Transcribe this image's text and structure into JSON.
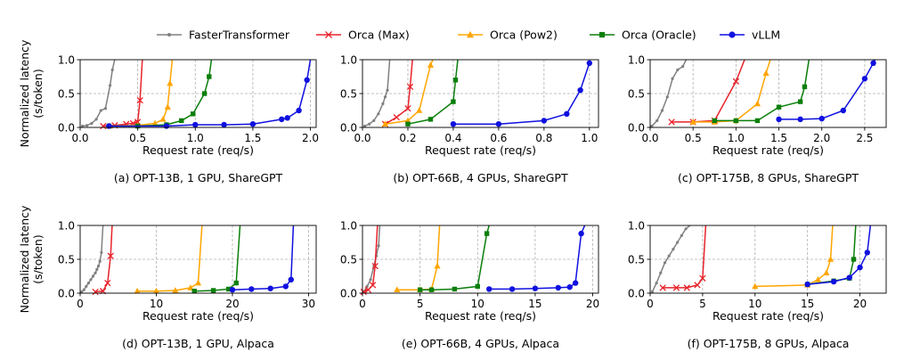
{
  "legend": [
    {
      "name": "FasterTransformer",
      "color": "#808080",
      "marker": "dot"
    },
    {
      "name": "Orca (Max)",
      "color": "#e8222a",
      "marker": "x"
    },
    {
      "name": "Orca (Pow2)",
      "color": "#ffa500",
      "marker": "triangle"
    },
    {
      "name": "Orca (Oracle)",
      "color": "#0b7f0b",
      "marker": "square"
    },
    {
      "name": "vLLM",
      "color": "#1010e0",
      "marker": "circle"
    }
  ],
  "y_axis_label": [
    "Normalized latency",
    "(s/token)"
  ],
  "x_axis_label": "Request rate (req/s)",
  "chart_data": [
    {
      "type": "line",
      "caption": "(a) OPT-13B, 1 GPU, ShareGPT",
      "xlabel": "Request rate (req/s)",
      "ylabel": "Normalized latency (s/token)",
      "xlim": [
        0,
        2.05
      ],
      "ylim": [
        0,
        1.0
      ],
      "xticks": [
        0.0,
        0.5,
        1.0,
        1.5,
        2.0
      ],
      "xtick_labels": [
        "0.0",
        "0.5",
        "1.0",
        "1.5",
        "2.0"
      ],
      "yticks": [
        0.0,
        0.5,
        1.0
      ],
      "ytick_labels": [
        "0.0",
        "0.5",
        "1.0"
      ],
      "series": [
        {
          "name": "FasterTransformer",
          "x": [
            0.02,
            0.06,
            0.1,
            0.14,
            0.18,
            0.22,
            0.26,
            0.28,
            0.3
          ],
          "y": [
            0.02,
            0.03,
            0.06,
            0.12,
            0.25,
            0.28,
            0.62,
            0.85,
            1.0
          ]
        },
        {
          "name": "Orca (Max)",
          "x": [
            0.2,
            0.3,
            0.4,
            0.46,
            0.5,
            0.52,
            0.54
          ],
          "y": [
            0.02,
            0.03,
            0.05,
            0.06,
            0.08,
            0.4,
            1.0
          ]
        },
        {
          "name": "Orca (Pow2)",
          "x": [
            0.25,
            0.5,
            0.65,
            0.72,
            0.76,
            0.78,
            0.8
          ],
          "y": [
            0.02,
            0.03,
            0.06,
            0.12,
            0.3,
            0.65,
            1.0
          ]
        },
        {
          "name": "Orca (Oracle)",
          "x": [
            0.25,
            0.5,
            0.75,
            0.88,
            0.98,
            1.08,
            1.12,
            1.14
          ],
          "y": [
            0.02,
            0.02,
            0.04,
            0.1,
            0.2,
            0.5,
            0.75,
            1.0
          ]
        },
        {
          "name": "vLLM",
          "x": [
            0.25,
            0.75,
            1.0,
            1.25,
            1.5,
            1.75,
            1.8,
            1.9,
            1.97,
            2.0
          ],
          "y": [
            0.02,
            0.02,
            0.04,
            0.04,
            0.05,
            0.12,
            0.14,
            0.25,
            0.7,
            1.0
          ]
        }
      ]
    },
    {
      "type": "line",
      "caption": "(b) OPT-66B, 4 GPUs, ShareGPT",
      "xlabel": "Request rate (req/s)",
      "ylabel": "Normalized latency (s/token)",
      "xlim": [
        0,
        1.04
      ],
      "ylim": [
        0,
        1.0
      ],
      "xticks": [
        0.0,
        0.2,
        0.4,
        0.6,
        0.8,
        1.0
      ],
      "xtick_labels": [
        "0.0",
        "0.2",
        "0.4",
        "0.6",
        "0.8",
        "1.0"
      ],
      "yticks": [
        0.0,
        0.5,
        1.0
      ],
      "ytick_labels": [
        "0.0",
        "0.5",
        "1.0"
      ],
      "series": [
        {
          "name": "FasterTransformer",
          "x": [
            0.01,
            0.03,
            0.05,
            0.07,
            0.09,
            0.1,
            0.11,
            0.12
          ],
          "y": [
            0.02,
            0.05,
            0.1,
            0.2,
            0.35,
            0.45,
            0.55,
            1.0
          ]
        },
        {
          "name": "Orca (Max)",
          "x": [
            0.1,
            0.15,
            0.2,
            0.21,
            0.22
          ],
          "y": [
            0.05,
            0.15,
            0.28,
            0.6,
            1.0
          ]
        },
        {
          "name": "Orca (Pow2)",
          "x": [
            0.1,
            0.2,
            0.25,
            0.3,
            0.31
          ],
          "y": [
            0.05,
            0.1,
            0.25,
            0.92,
            1.0
          ]
        },
        {
          "name": "Orca (Oracle)",
          "x": [
            0.2,
            0.3,
            0.4,
            0.41,
            0.42
          ],
          "y": [
            0.05,
            0.12,
            0.38,
            0.7,
            1.0
          ]
        },
        {
          "name": "vLLM",
          "x": [
            0.4,
            0.6,
            0.8,
            0.9,
            0.96,
            1.0
          ],
          "y": [
            0.05,
            0.05,
            0.1,
            0.2,
            0.55,
            0.95
          ]
        }
      ]
    },
    {
      "type": "line",
      "caption": "(c) OPT-175B, 8 GPUs, ShareGPT",
      "xlabel": "Request rate (req/s)",
      "ylabel": "Normalized latency (s/token)",
      "xlim": [
        0,
        2.75
      ],
      "ylim": [
        0,
        1.0
      ],
      "xticks": [
        0.0,
        0.5,
        1.0,
        1.5,
        2.0,
        2.5
      ],
      "xtick_labels": [
        "0.0",
        "0.5",
        "1.0",
        "1.5",
        "2.0",
        "2.5"
      ],
      "yticks": [
        0.0,
        0.5,
        1.0
      ],
      "ytick_labels": [
        "0.0",
        "0.5",
        "1.0"
      ],
      "series": [
        {
          "name": "FasterTransformer",
          "x": [
            0.02,
            0.08,
            0.14,
            0.2,
            0.26,
            0.32,
            0.38,
            0.42
          ],
          "y": [
            0.02,
            0.1,
            0.25,
            0.45,
            0.72,
            0.85,
            0.9,
            1.0
          ]
        },
        {
          "name": "Orca (Max)",
          "x": [
            0.25,
            0.5,
            0.75,
            1.0,
            1.1
          ],
          "y": [
            0.08,
            0.08,
            0.1,
            0.68,
            1.0
          ]
        },
        {
          "name": "Orca (Pow2)",
          "x": [
            0.5,
            0.75,
            1.0,
            1.25,
            1.35,
            1.4
          ],
          "y": [
            0.08,
            0.08,
            0.1,
            0.35,
            0.8,
            1.0
          ]
        },
        {
          "name": "Orca (Oracle)",
          "x": [
            0.75,
            1.0,
            1.25,
            1.5,
            1.75,
            1.8,
            1.85
          ],
          "y": [
            0.1,
            0.1,
            0.1,
            0.3,
            0.38,
            0.6,
            1.0
          ]
        },
        {
          "name": "vLLM",
          "x": [
            1.5,
            1.75,
            2.0,
            2.25,
            2.5,
            2.6,
            2.62
          ],
          "y": [
            0.12,
            0.12,
            0.13,
            0.25,
            0.72,
            0.95,
            1.0
          ]
        }
      ]
    },
    {
      "type": "line",
      "caption": "(d) OPT-13B, 1 GPU, Alpaca",
      "xlabel": "Request rate (req/s)",
      "ylabel": "Normalized latency (s/token)",
      "xlim": [
        0,
        31.0
      ],
      "ylim": [
        0,
        1.0
      ],
      "xticks": [
        0,
        10,
        20,
        30
      ],
      "xtick_labels": [
        "0",
        "10",
        "20",
        "30"
      ],
      "yticks": [
        0.0,
        0.5,
        1.0
      ],
      "ytick_labels": [
        "0.0",
        "0.5",
        "1.0"
      ],
      "series": [
        {
          "name": "FasterTransformer",
          "x": [
            0.2,
            0.5,
            0.8,
            1.1,
            1.4,
            1.7,
            2.0,
            2.2,
            2.4,
            2.6,
            2.8,
            3.0
          ],
          "y": [
            0.02,
            0.05,
            0.1,
            0.15,
            0.2,
            0.25,
            0.3,
            0.35,
            0.4,
            0.47,
            0.6,
            1.0
          ]
        },
        {
          "name": "Orca (Max)",
          "x": [
            2.0,
            3.0,
            3.6,
            4.0,
            4.2
          ],
          "y": [
            0.02,
            0.03,
            0.15,
            0.55,
            1.0
          ]
        },
        {
          "name": "Orca (Pow2)",
          "x": [
            7.5,
            10.0,
            12.5,
            14.5,
            15.5,
            16.0
          ],
          "y": [
            0.03,
            0.03,
            0.04,
            0.08,
            0.15,
            1.0
          ]
        },
        {
          "name": "Orca (Oracle)",
          "x": [
            15.0,
            17.5,
            19.5,
            20.5,
            21.0
          ],
          "y": [
            0.03,
            0.04,
            0.06,
            0.15,
            1.0
          ]
        },
        {
          "name": "vLLM",
          "x": [
            20.0,
            22.5,
            25.0,
            27.0,
            27.7,
            28.0
          ],
          "y": [
            0.05,
            0.06,
            0.07,
            0.1,
            0.2,
            1.0
          ]
        }
      ]
    },
    {
      "type": "line",
      "caption": "(e) OPT-66B, 4 GPUs, Alpaca",
      "xlabel": "Request rate (req/s)",
      "ylabel": "Normalized latency (s/token)",
      "xlim": [
        0,
        20.5
      ],
      "ylim": [
        0,
        1.0
      ],
      "xticks": [
        0,
        5,
        10,
        15,
        20
      ],
      "xtick_labels": [
        "0",
        "5",
        "10",
        "15",
        "20"
      ],
      "yticks": [
        0.0,
        0.5,
        1.0
      ],
      "ytick_labels": [
        "0.0",
        "0.5",
        "1.0"
      ],
      "series": [
        {
          "name": "FasterTransformer",
          "x": [
            0.1,
            0.4,
            0.7,
            1.0,
            1.2,
            1.4,
            1.5
          ],
          "y": [
            0.02,
            0.1,
            0.2,
            0.4,
            0.55,
            0.7,
            1.0
          ]
        },
        {
          "name": "Orca (Max)",
          "x": [
            0.1,
            0.5,
            0.9,
            1.1,
            1.3
          ],
          "y": [
            0.02,
            0.05,
            0.12,
            0.4,
            1.0
          ]
        },
        {
          "name": "Orca (Pow2)",
          "x": [
            3.0,
            5.0,
            6.0,
            6.5,
            6.7
          ],
          "y": [
            0.05,
            0.05,
            0.06,
            0.4,
            1.0
          ]
        },
        {
          "name": "Orca (Oracle)",
          "x": [
            5.0,
            6.0,
            8.0,
            10.0,
            10.8,
            11.0
          ],
          "y": [
            0.05,
            0.05,
            0.06,
            0.1,
            0.88,
            1.0
          ]
        },
        {
          "name": "vLLM",
          "x": [
            11.0,
            13.0,
            15.0,
            17.0,
            18.0,
            18.5,
            19.0,
            19.3
          ],
          "y": [
            0.06,
            0.06,
            0.07,
            0.08,
            0.09,
            0.15,
            0.88,
            1.0
          ]
        }
      ]
    },
    {
      "type": "line",
      "caption": "(f) OPT-175B, 8 GPUs, Alpaca",
      "xlabel": "Request rate (req/s)",
      "ylabel": "Normalized latency (s/token)",
      "xlim": [
        0,
        22.5
      ],
      "ylim": [
        0,
        1.0
      ],
      "xticks": [
        0,
        5,
        10,
        15,
        20
      ],
      "xtick_labels": [
        "0",
        "5",
        "10",
        "15",
        "20"
      ],
      "yticks": [
        0.0,
        0.5,
        1.0
      ],
      "ytick_labels": [
        "0.0",
        "0.5",
        "1.0"
      ],
      "series": [
        {
          "name": "FasterTransformer",
          "x": [
            0.2,
            0.6,
            1.0,
            1.4,
            1.8,
            2.2,
            2.6,
            3.0,
            3.4,
            3.8
          ],
          "y": [
            0.02,
            0.15,
            0.3,
            0.45,
            0.55,
            0.65,
            0.75,
            0.85,
            0.95,
            1.0
          ]
        },
        {
          "name": "Orca (Max)",
          "x": [
            1.2,
            2.5,
            3.5,
            4.5,
            5.0,
            5.3
          ],
          "y": [
            0.08,
            0.08,
            0.08,
            0.12,
            0.22,
            1.0
          ]
        },
        {
          "name": "Orca (Pow2)",
          "x": [
            10.0,
            15.0,
            16.0,
            16.8,
            17.2,
            17.4
          ],
          "y": [
            0.1,
            0.12,
            0.2,
            0.3,
            0.5,
            1.0
          ]
        },
        {
          "name": "Orca (Oracle)",
          "x": [
            15.0,
            17.5,
            19.0,
            19.4,
            19.6
          ],
          "y": [
            0.13,
            0.18,
            0.22,
            0.5,
            1.0
          ]
        },
        {
          "name": "vLLM",
          "x": [
            15.0,
            17.5,
            19.0,
            20.0,
            20.7,
            21.0
          ],
          "y": [
            0.13,
            0.17,
            0.23,
            0.38,
            0.6,
            1.0
          ]
        }
      ]
    }
  ]
}
